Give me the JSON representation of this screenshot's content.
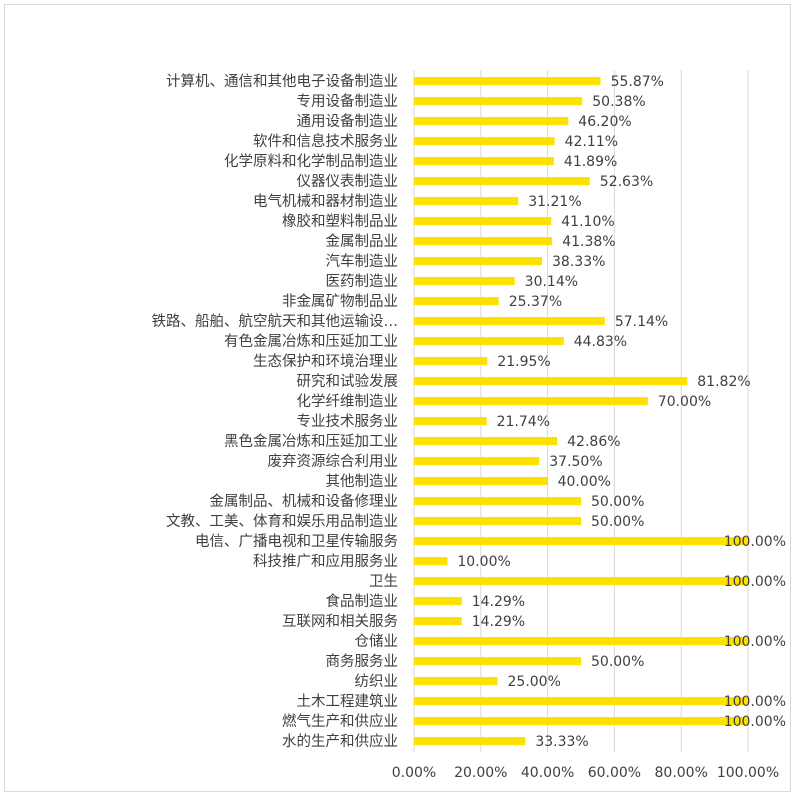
{
  "chart_data": {
    "type": "bar",
    "orientation": "horizontal",
    "title": "",
    "xlabel": "",
    "ylabel": "",
    "xlim": [
      0,
      100
    ],
    "grid": true,
    "legend": "none",
    "bar_color": "#ffe100",
    "x_ticks": [
      "0.00%",
      "20.00%",
      "40.00%",
      "60.00%",
      "80.00%",
      "100.00%"
    ],
    "categories": [
      "计算机、通信和其他电子设备制造业",
      "专用设备制造业",
      "通用设备制造业",
      "软件和信息技术服务业",
      "化学原料和化学制品制造业",
      "仪器仪表制造业",
      "电气机械和器材制造业",
      "橡胶和塑料制品业",
      "金属制品业",
      "汽车制造业",
      "医药制造业",
      "非金属矿物制品业",
      "铁路、船舶、航空航天和其他运输设…",
      "有色金属冶炼和压延加工业",
      "生态保护和环境治理业",
      "研究和试验发展",
      "化学纤维制造业",
      "专业技术服务业",
      "黑色金属冶炼和压延加工业",
      "废弃资源综合利用业",
      "其他制造业",
      "金属制品、机械和设备修理业",
      "文教、工美、体育和娱乐用品制造业",
      "电信、广播电视和卫星传输服务",
      "科技推广和应用服务业",
      "卫生",
      "食品制造业",
      "互联网和相关服务",
      "仓储业",
      "商务服务业",
      "纺织业",
      "土木工程建筑业",
      "燃气生产和供应业",
      "水的生产和供应业"
    ],
    "values": [
      55.87,
      50.38,
      46.2,
      42.11,
      41.89,
      52.63,
      31.21,
      41.1,
      41.38,
      38.33,
      30.14,
      25.37,
      57.14,
      44.83,
      21.95,
      81.82,
      70.0,
      21.74,
      42.86,
      37.5,
      40.0,
      50.0,
      50.0,
      100.0,
      10.0,
      100.0,
      14.29,
      14.29,
      100.0,
      50.0,
      25.0,
      100.0,
      100.0,
      33.33
    ],
    "value_labels": [
      "55.87%",
      "50.38%",
      "46.20%",
      "42.11%",
      "41.89%",
      "52.63%",
      "31.21%",
      "41.10%",
      "41.38%",
      "38.33%",
      "30.14%",
      "25.37%",
      "57.14%",
      "44.83%",
      "21.95%",
      "81.82%",
      "70.00%",
      "21.74%",
      "42.86%",
      "37.50%",
      "40.00%",
      "50.00%",
      "50.00%",
      "100.00%",
      "10.00%",
      "100.00%",
      "14.29%",
      "14.29%",
      "100.00%",
      "50.00%",
      "25.00%",
      "100.00%",
      "100.00%",
      "33.33%"
    ]
  }
}
